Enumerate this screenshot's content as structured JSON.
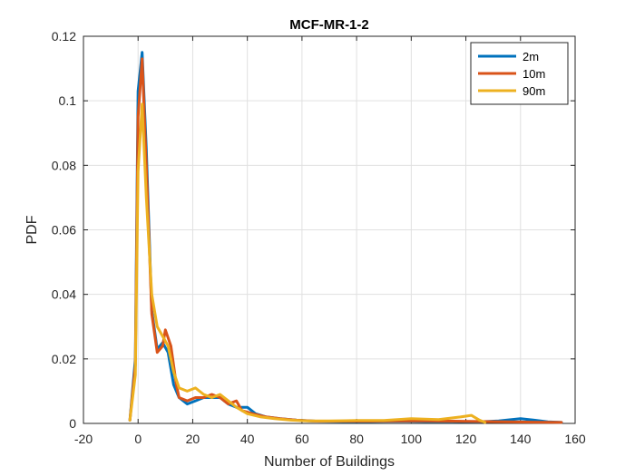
{
  "chart_data": {
    "type": "line",
    "title": "MCF-MR-1-2",
    "xlabel": "Number of Buildings",
    "ylabel": "PDF",
    "xlim": [
      -20,
      160
    ],
    "ylim": [
      0,
      0.12
    ],
    "xticks": [
      "-20",
      "0",
      "20",
      "40",
      "60",
      "80",
      "100",
      "120",
      "140",
      "160"
    ],
    "yticks": [
      "0",
      "0.02",
      "0.04",
      "0.06",
      "0.08",
      "0.1",
      "0.12"
    ],
    "grid": true,
    "legend_position": "top-right",
    "series": [
      {
        "name": "2m",
        "color": "#0072BD",
        "points": [
          [
            -3,
            0.001
          ],
          [
            -1,
            0.02
          ],
          [
            0,
            0.103
          ],
          [
            1.5,
            0.115
          ],
          [
            3,
            0.085
          ],
          [
            5,
            0.035
          ],
          [
            7,
            0.023
          ],
          [
            9,
            0.025
          ],
          [
            11,
            0.022
          ],
          [
            13,
            0.012
          ],
          [
            15,
            0.008
          ],
          [
            18,
            0.006
          ],
          [
            21,
            0.007
          ],
          [
            24,
            0.008
          ],
          [
            27,
            0.008
          ],
          [
            30,
            0.008
          ],
          [
            33,
            0.006
          ],
          [
            36,
            0.005
          ],
          [
            40,
            0.005
          ],
          [
            43,
            0.003
          ],
          [
            47,
            0.002
          ],
          [
            52,
            0.0015
          ],
          [
            58,
            0.001
          ],
          [
            65,
            0.0007
          ],
          [
            75,
            0.0006
          ],
          [
            85,
            0.0006
          ],
          [
            95,
            0.0007
          ],
          [
            105,
            0.0006
          ],
          [
            115,
            0.0006
          ],
          [
            125,
            0.0005
          ],
          [
            132,
            0.0008
          ],
          [
            140,
            0.0015
          ],
          [
            145,
            0.001
          ],
          [
            150,
            0.0005
          ],
          [
            155,
            0.0003
          ]
        ]
      },
      {
        "name": "10m",
        "color": "#D95319",
        "points": [
          [
            -3,
            0.001
          ],
          [
            -1,
            0.018
          ],
          [
            0,
            0.095
          ],
          [
            1.5,
            0.113
          ],
          [
            3,
            0.08
          ],
          [
            5,
            0.034
          ],
          [
            7,
            0.022
          ],
          [
            9,
            0.024
          ],
          [
            10,
            0.029
          ],
          [
            12,
            0.024
          ],
          [
            14,
            0.012
          ],
          [
            15,
            0.008
          ],
          [
            18,
            0.007
          ],
          [
            21,
            0.008
          ],
          [
            24,
            0.008
          ],
          [
            27,
            0.009
          ],
          [
            30,
            0.008
          ],
          [
            33,
            0.006
          ],
          [
            36,
            0.007
          ],
          [
            38,
            0.004
          ],
          [
            42,
            0.003
          ],
          [
            47,
            0.002
          ],
          [
            52,
            0.0015
          ],
          [
            58,
            0.001
          ],
          [
            65,
            0.0007
          ],
          [
            75,
            0.0007
          ],
          [
            85,
            0.0007
          ],
          [
            95,
            0.0008
          ],
          [
            105,
            0.0008
          ],
          [
            115,
            0.0007
          ],
          [
            125,
            0.0006
          ],
          [
            135,
            0.0005
          ],
          [
            145,
            0.0004
          ],
          [
            155,
            0.0003
          ]
        ]
      },
      {
        "name": "90m",
        "color": "#EDB120",
        "points": [
          [
            -3,
            0.001
          ],
          [
            -1,
            0.015
          ],
          [
            0,
            0.078
          ],
          [
            1.5,
            0.099
          ],
          [
            3,
            0.07
          ],
          [
            5,
            0.04
          ],
          [
            7,
            0.03
          ],
          [
            9,
            0.027
          ],
          [
            11,
            0.024
          ],
          [
            13,
            0.016
          ],
          [
            15,
            0.011
          ],
          [
            18,
            0.01
          ],
          [
            21,
            0.011
          ],
          [
            24,
            0.009
          ],
          [
            27,
            0.008
          ],
          [
            30,
            0.009
          ],
          [
            33,
            0.007
          ],
          [
            36,
            0.005
          ],
          [
            40,
            0.003
          ],
          [
            45,
            0.002
          ],
          [
            50,
            0.0015
          ],
          [
            56,
            0.001
          ],
          [
            62,
            0.0008
          ],
          [
            70,
            0.0008
          ],
          [
            80,
            0.0009
          ],
          [
            90,
            0.0009
          ],
          [
            100,
            0.0015
          ],
          [
            110,
            0.0012
          ],
          [
            118,
            0.002
          ],
          [
            122,
            0.0025
          ],
          [
            125,
            0.001
          ],
          [
            127,
            0.0003
          ]
        ]
      }
    ]
  }
}
